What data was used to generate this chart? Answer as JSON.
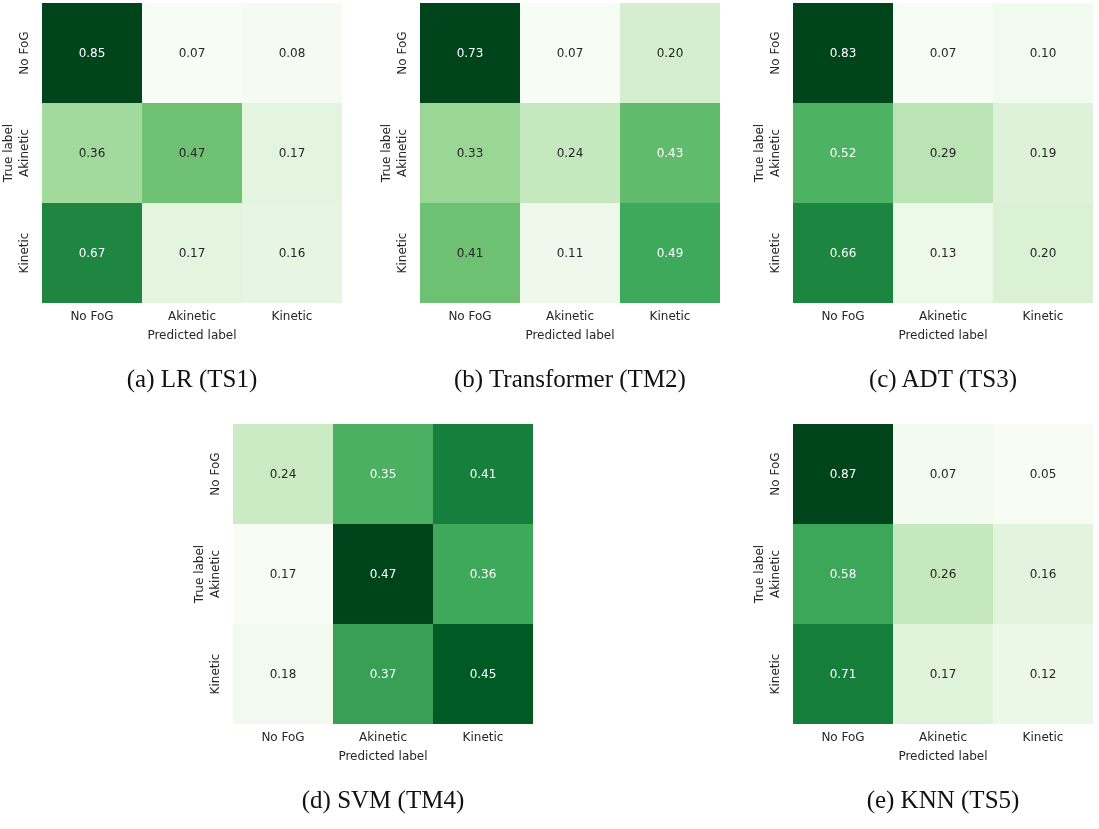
{
  "chart_data": [
    {
      "type": "heatmap",
      "title": "(a) LR (TS1)",
      "xlabel": "Predicted label",
      "ylabel": "True label",
      "categories": [
        "No FoG",
        "Akinetic",
        "Kinetic"
      ],
      "y_categories": [
        "No FoG",
        "Akinetic",
        "Kinetic"
      ],
      "data_labels": true,
      "cells": [
        [
          0.85,
          0.07,
          0.08
        ],
        [
          0.36,
          0.47,
          0.17
        ],
        [
          0.67,
          0.17,
          0.16
        ]
      ]
    },
    {
      "type": "heatmap",
      "title": "(b) Transformer (TM2)",
      "xlabel": "Predicted label",
      "ylabel": "True label",
      "categories": [
        "No FoG",
        "Akinetic",
        "Kinetic"
      ],
      "y_categories": [
        "No FoG",
        "Akinetic",
        "Kinetic"
      ],
      "cells": [
        [
          0.73,
          0.07,
          0.2
        ],
        [
          0.33,
          0.24,
          0.43
        ],
        [
          0.41,
          0.11,
          0.49
        ]
      ],
      "cell_labels": [
        [
          "0.73",
          "0.07",
          "0.20"
        ],
        [
          "0.33",
          "0.24",
          "0.43"
        ],
        [
          "0.41",
          "0.11",
          "0.49"
        ]
      ]
    },
    {
      "type": "heatmap",
      "title": "(c) ADT (TS3)",
      "xlabel": "Predicted label",
      "ylabel": "True label",
      "categories": [
        "No FoG",
        "Akinetic",
        "Kinetic"
      ],
      "y_categories": [
        "No FoG",
        "Akinetic",
        "Kinetic"
      ],
      "cells": [
        [
          0.83,
          0.07,
          0.1
        ],
        [
          0.52,
          0.29,
          0.19
        ],
        [
          0.66,
          0.13,
          0.2
        ]
      ],
      "cell_labels": [
        [
          "0.83",
          "0.07",
          "0.10"
        ],
        [
          "0.52",
          "0.29",
          "0.19"
        ],
        [
          "0.66",
          "0.13",
          "0.20"
        ]
      ]
    },
    {
      "type": "heatmap",
      "title": "(d) SVM (TM4)",
      "xlabel": "Predicted label",
      "ylabel": "True label",
      "categories": [
        "No FoG",
        "Akinetic",
        "Kinetic"
      ],
      "y_categories": [
        "No FoG",
        "Akinetic",
        "Kinetic"
      ],
      "data_labels": true,
      "cells": [
        [
          0.24,
          0.35,
          0.41
        ],
        [
          0.17,
          0.47,
          0.36
        ],
        [
          0.18,
          0.37,
          0.45
        ]
      ]
    },
    {
      "type": "heatmap",
      "title": "(e) KNN (TS5)",
      "xlabel": "Predicted label",
      "ylabel": "True label",
      "categories": [
        "No FoG",
        "Akinetic",
        "Kinetic"
      ],
      "y_categories": [
        "No FoG",
        "Akinetic",
        "Kinetic"
      ],
      "data_labels": true,
      "cells": [
        [
          0.87,
          0.07,
          0.05
        ],
        [
          0.58,
          0.26,
          0.16
        ],
        [
          0.71,
          0.17,
          0.12
        ]
      ]
    }
  ]
}
